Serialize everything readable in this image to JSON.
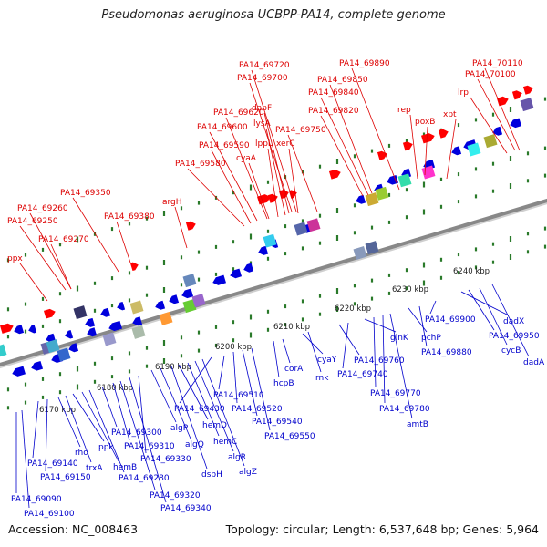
{
  "title": "Pseudomonas aeruginosa UCBPP-PA14, complete genome",
  "footer": {
    "accession": "Accession: NC_008463",
    "topology": "Topology: circular; Length: 6,537,648 bp; Genes: 5,964"
  },
  "colors": {
    "forward_gene": "#ff0000",
    "reverse_gene": "#0000dd",
    "top_label": "#dd0000",
    "bottom_label": "#0000cc",
    "backbone": "#888888",
    "tick": "#2a7a2a"
  },
  "scale_labels": [
    "6170 kbp",
    "6180 kbp",
    "6190 kbp",
    "6200 kbp",
    "6210 kbp",
    "6220 kbp",
    "6230 kbp",
    "6240 kbp"
  ],
  "top_labels": [
    "ppx",
    "PA14_69270",
    "PA14_69250",
    "PA14_69260",
    "PA14_69350",
    "PA14_69380",
    "argH",
    "PA14_69580",
    "PA14_69590",
    "PA14_69600",
    "PA14_69620",
    "cyaA",
    "lppL",
    "lysA",
    "dapF",
    "xerC",
    "PA14_69750",
    "PA14_69700",
    "PA14_69720",
    "PA14_69820",
    "PA14_69840",
    "PA14_69850",
    "PA14_69890",
    "rep",
    "poxB",
    "xpt",
    "lrp",
    "PA14_70100",
    "PA14_70110"
  ],
  "bottom_labels": [
    "PA14_69090",
    "PA14_69100",
    "PA14_69140",
    "PA14_69150",
    "rho",
    "trxA",
    "ppk",
    "hemB",
    "PA14_69280",
    "PA14_69300",
    "PA14_69310",
    "PA14_69320",
    "PA14_69340",
    "PA14_69330",
    "algP",
    "algQ",
    "dsbH",
    "hemD",
    "hemC",
    "algR",
    "algZ",
    "PA14_69430",
    "PA14_69510",
    "PA14_69520",
    "PA14_69540",
    "PA14_69550",
    "hcpB",
    "corA",
    "cyaY",
    "rnk",
    "PA14_69760",
    "PA14_69740",
    "glnK",
    "PA14_69770",
    "PA14_69780",
    "amtB",
    "pchP",
    "PA14_69880",
    "PA14_69900",
    "dadX",
    "PA14_69950",
    "cycB",
    "dadA"
  ]
}
